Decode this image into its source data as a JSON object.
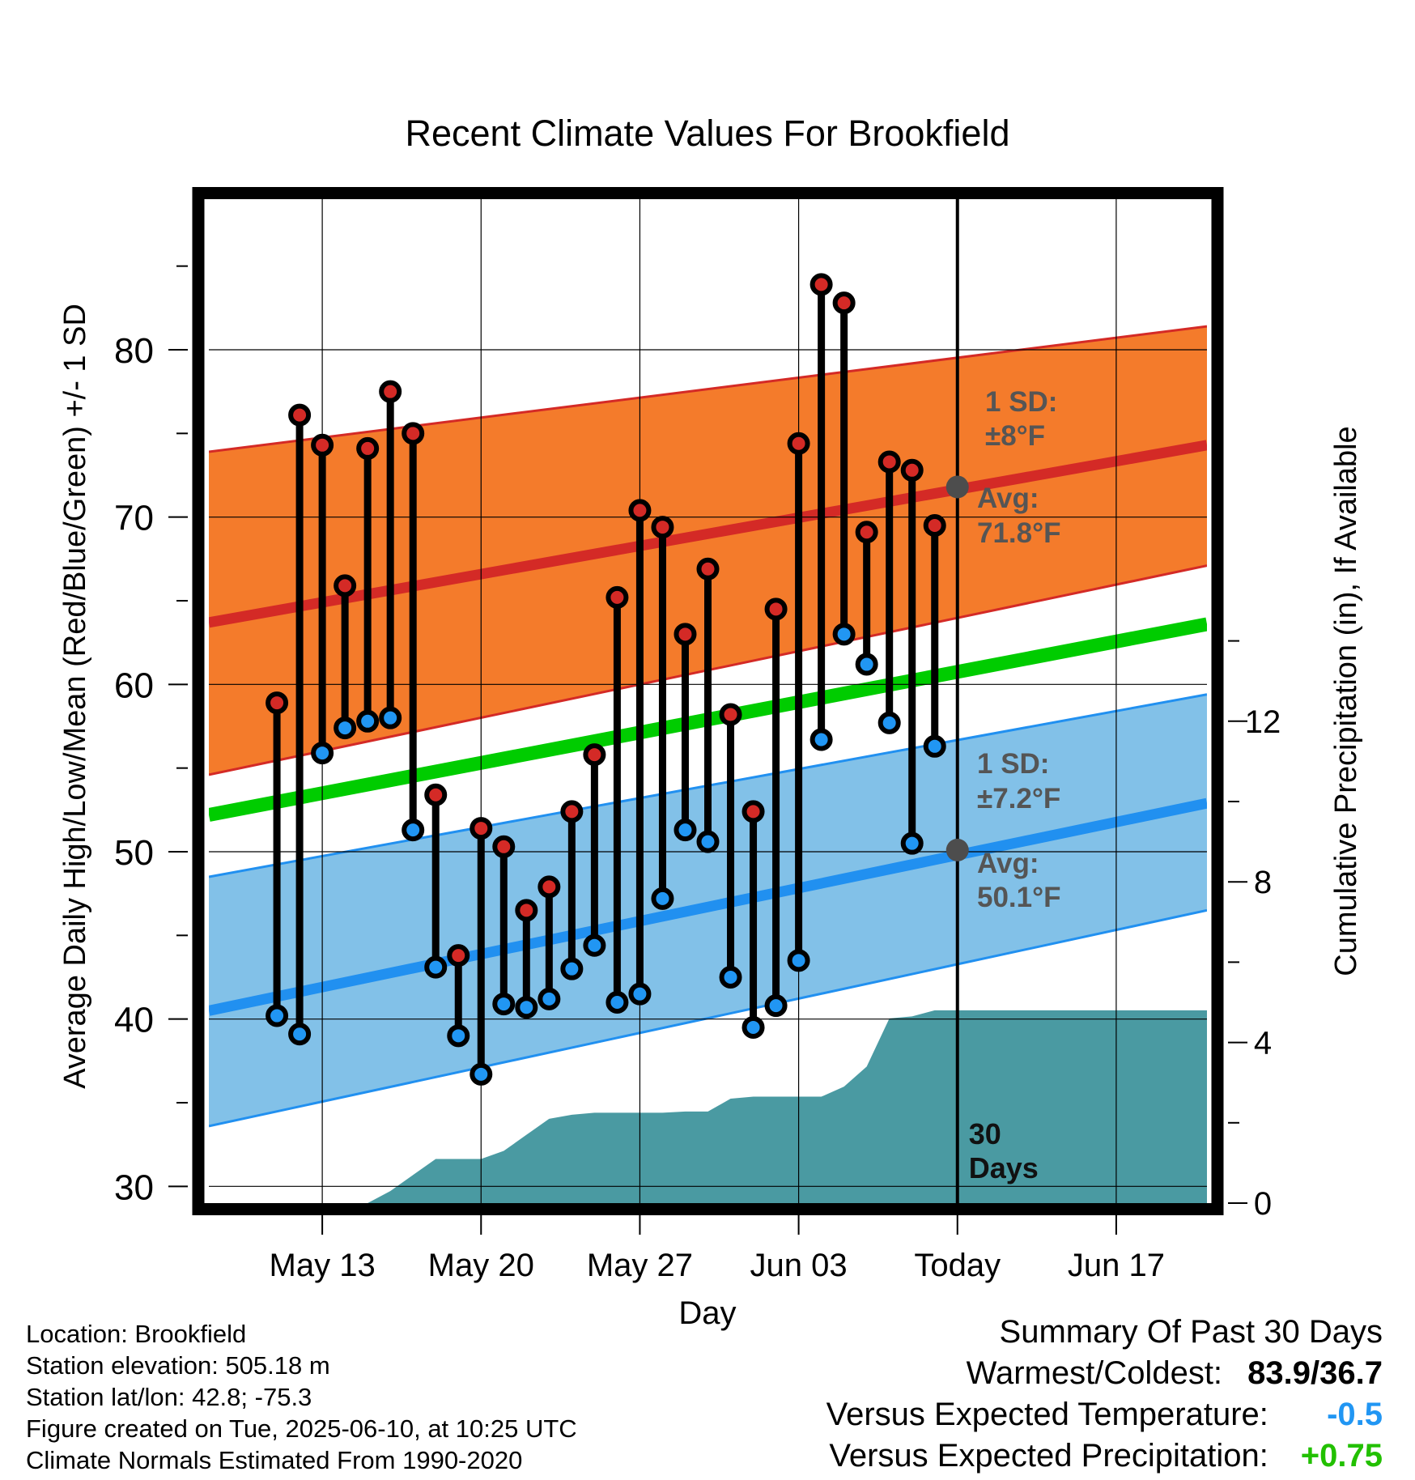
{
  "chart_data": {
    "type": "bar",
    "title": "Recent Climate Values For Brookfield",
    "xlabel": "Day",
    "ylabel": "Average Daily High/Low/Mean (Red/Blue/Green) +/- 1 SD",
    "y2label": "Cumulative Precipitation (in), If Available",
    "ylim": [
      29,
      89
    ],
    "y2lim": [
      0,
      25
    ],
    "yticks": [
      30,
      40,
      50,
      60,
      70,
      80
    ],
    "y2ticks": [
      0,
      4,
      8,
      12
    ],
    "xlim": [
      "May 08",
      "Jun 21"
    ],
    "xticks": [
      {
        "date": "May 13",
        "label": "May 13"
      },
      {
        "date": "May 20",
        "label": "May 20"
      },
      {
        "date": "May 27",
        "label": "May 27"
      },
      {
        "date": "Jun 03",
        "label": "Jun 03"
      },
      {
        "date": "Jun 10",
        "label": "Today"
      },
      {
        "date": "Jun 17",
        "label": "Jun 17"
      }
    ],
    "today_marker": {
      "date": "Jun 10",
      "label_line1": "30",
      "label_line2": "Days"
    },
    "normal_high": {
      "dates": [
        "May 08",
        "Jun 21"
      ],
      "mean": [
        63.7,
        74.3
      ],
      "upper": [
        73.9,
        81.4
      ],
      "lower": [
        54.6,
        67.1
      ],
      "sd_label_line1": "1 SD:",
      "sd_label_line2": "±8°F",
      "avg_label_line1": "Avg:",
      "avg_label_line2": "71.8°F",
      "avg_today": 71.8
    },
    "normal_low": {
      "dates": [
        "May 08",
        "Jun 21"
      ],
      "mean": [
        40.5,
        52.9
      ],
      "upper": [
        48.5,
        59.4
      ],
      "lower": [
        33.6,
        46.5
      ],
      "sd_label_line1": "1 SD:",
      "sd_label_line2": "±7.2°F",
      "avg_label_line1": "Avg:",
      "avg_label_line2": "50.1°F",
      "avg_today": 50.1
    },
    "normal_mean": {
      "dates": [
        "May 08",
        "Jun 21"
      ],
      "values": [
        52.2,
        63.6
      ]
    },
    "daily": {
      "dates": [
        "May 11",
        "May 12",
        "May 13",
        "May 14",
        "May 15",
        "May 16",
        "May 17",
        "May 18",
        "May 19",
        "May 20",
        "May 21",
        "May 22",
        "May 23",
        "May 24",
        "May 25",
        "May 26",
        "May 27",
        "May 28",
        "May 29",
        "May 30",
        "May 31",
        "Jun 01",
        "Jun 02",
        "Jun 03",
        "Jun 04",
        "Jun 05",
        "Jun 06",
        "Jun 07",
        "Jun 08",
        "Jun 09"
      ],
      "high": [
        58.9,
        76.1,
        74.3,
        65.9,
        74.1,
        77.5,
        75.0,
        53.4,
        43.8,
        51.4,
        50.3,
        46.5,
        47.9,
        52.4,
        55.8,
        65.2,
        70.4,
        69.4,
        63.0,
        66.9,
        58.2,
        52.4,
        64.5,
        74.4,
        83.9,
        82.8,
        69.1,
        73.3,
        72.8,
        69.5
      ],
      "low": [
        40.2,
        39.1,
        55.9,
        57.4,
        57.8,
        58.0,
        51.3,
        43.1,
        39.0,
        36.7,
        40.9,
        40.7,
        41.2,
        43.0,
        44.4,
        41.0,
        41.5,
        47.2,
        51.3,
        50.6,
        42.5,
        39.5,
        40.8,
        43.5,
        56.7,
        63.0,
        61.2,
        57.7,
        50.5,
        56.3
      ]
    },
    "precip_cumulative": {
      "dates": [
        "May 08",
        "May 10",
        "May 11",
        "May 12",
        "May 13",
        "May 14",
        "May 15",
        "May 16",
        "May 17",
        "May 18",
        "May 19",
        "May 20",
        "May 21",
        "May 22",
        "May 23",
        "May 24",
        "May 25",
        "May 26",
        "May 27",
        "May 28",
        "May 29",
        "May 30",
        "May 31",
        "Jun 01",
        "Jun 02",
        "Jun 03",
        "Jun 04",
        "Jun 05",
        "Jun 06",
        "Jun 07",
        "Jun 08",
        "Jun 09",
        "Jun 10",
        "Jun 21"
      ],
      "values": [
        0,
        0,
        0,
        0,
        0,
        0,
        0,
        0.3,
        0.7,
        1.1,
        1.1,
        1.1,
        1.3,
        1.7,
        2.1,
        2.2,
        2.25,
        2.25,
        2.25,
        2.25,
        2.28,
        2.28,
        2.6,
        2.65,
        2.65,
        2.65,
        2.65,
        2.9,
        3.4,
        4.6,
        4.65,
        4.8,
        4.8,
        4.8
      ]
    },
    "colors": {
      "high_band": "#f47b2b",
      "high_line": "#d42a26",
      "low_band": "#82c1e8",
      "low_line": "#2190f0",
      "mean_line": "#00cc00",
      "precip": "#4a9aa2",
      "high_dot": "#d42a26",
      "low_dot": "#2196f3",
      "avg_dot": "#4d4d4d"
    }
  },
  "info": {
    "location": "Location: Brookfield",
    "elevation": "Station elevation: 505.18 m",
    "latlon": "Station lat/lon: 42.8; -75.3",
    "created": "Figure created on Tue, 2025-06-10, at 10:25 UTC",
    "normals": "Climate Normals Estimated From 1990-2020"
  },
  "summary": {
    "heading": "Summary Of Past 30 Days",
    "warmest_label": "Warmest/Coldest:",
    "warmest_value": "83.9/36.7",
    "temp_label": "Versus Expected Temperature:",
    "temp_value": "-0.5",
    "temp_color": "#2196f3",
    "precip_label": "Versus Expected Precipitation:",
    "precip_value": "+0.75",
    "precip_color": "#22c000"
  }
}
